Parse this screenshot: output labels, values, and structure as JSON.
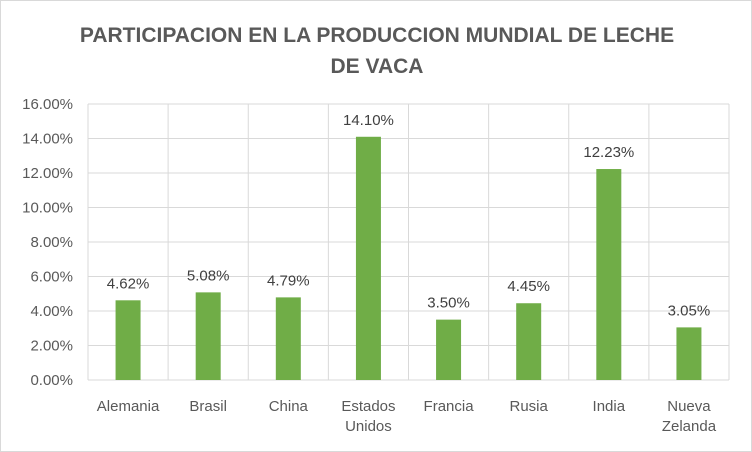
{
  "chart_data": {
    "type": "bar",
    "title_lines": [
      "PARTICIPACION EN LA PRODUCCION MUNDIAL DE LECHE",
      "DE VACA"
    ],
    "categories": [
      [
        "Alemania"
      ],
      [
        "Brasil"
      ],
      [
        "China"
      ],
      [
        "Estados",
        "Unidos"
      ],
      [
        "Francia"
      ],
      [
        "Rusia"
      ],
      [
        "India"
      ],
      [
        "Nueva",
        "Zelanda"
      ]
    ],
    "values": [
      4.62,
      5.08,
      4.79,
      14.1,
      3.5,
      4.45,
      12.23,
      3.05
    ],
    "data_labels": [
      "4.62%",
      "5.08%",
      "4.79%",
      "14.10%",
      "3.50%",
      "4.45%",
      "12.23%",
      "3.05%"
    ],
    "y_ticks": [
      "0.00%",
      "2.00%",
      "4.00%",
      "6.00%",
      "8.00%",
      "10.00%",
      "12.00%",
      "14.00%",
      "16.00%"
    ],
    "ylim": [
      0,
      16
    ],
    "grid": true,
    "bar_color": "#70ad47",
    "grid_color": "#d9d9d9"
  }
}
